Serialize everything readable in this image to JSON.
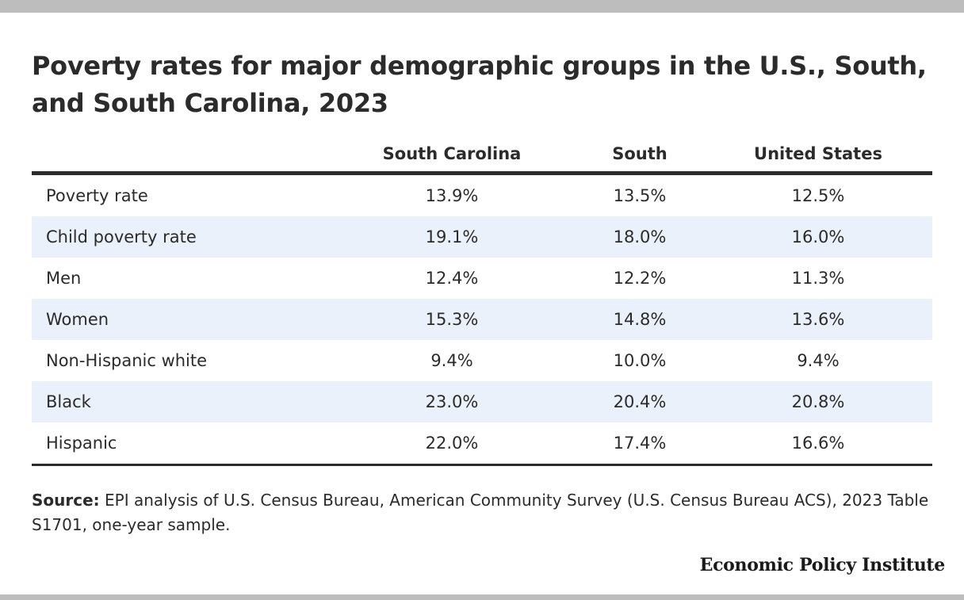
{
  "chart_data": {
    "type": "table",
    "title": "Poverty rates for major demographic groups in the U.S., South, and South Carolina, 2023",
    "columns": [
      "South Carolina",
      "South",
      "United States"
    ],
    "rows": [
      {
        "label": "Poverty rate",
        "values": [
          "13.9%",
          "13.5%",
          "12.5%"
        ]
      },
      {
        "label": "Child poverty rate",
        "values": [
          "19.1%",
          "18.0%",
          "16.0%"
        ]
      },
      {
        "label": "Men",
        "values": [
          "12.4%",
          "12.2%",
          "11.3%"
        ]
      },
      {
        "label": "Women",
        "values": [
          "15.3%",
          "14.8%",
          "13.6%"
        ]
      },
      {
        "label": "Non-Hispanic white",
        "values": [
          "9.4%",
          "10.0%",
          "9.4%"
        ]
      },
      {
        "label": "Black",
        "values": [
          "23.0%",
          "20.4%",
          "20.8%"
        ]
      },
      {
        "label": "Hispanic",
        "values": [
          "22.0%",
          "17.4%",
          "16.6%"
        ]
      }
    ],
    "source_label": "Source:",
    "source_text": "EPI analysis of U.S. Census Bureau, American Community Survey (U.S. Census Bureau ACS), 2023 Table S1701, one-year sample.",
    "brand": "Economic Policy Institute"
  },
  "colors": {
    "frame_bar": "#bdbdbd",
    "text": "#2b2b2b",
    "row_shade": "#eaf1fa",
    "rule": "#2b2b2b"
  }
}
